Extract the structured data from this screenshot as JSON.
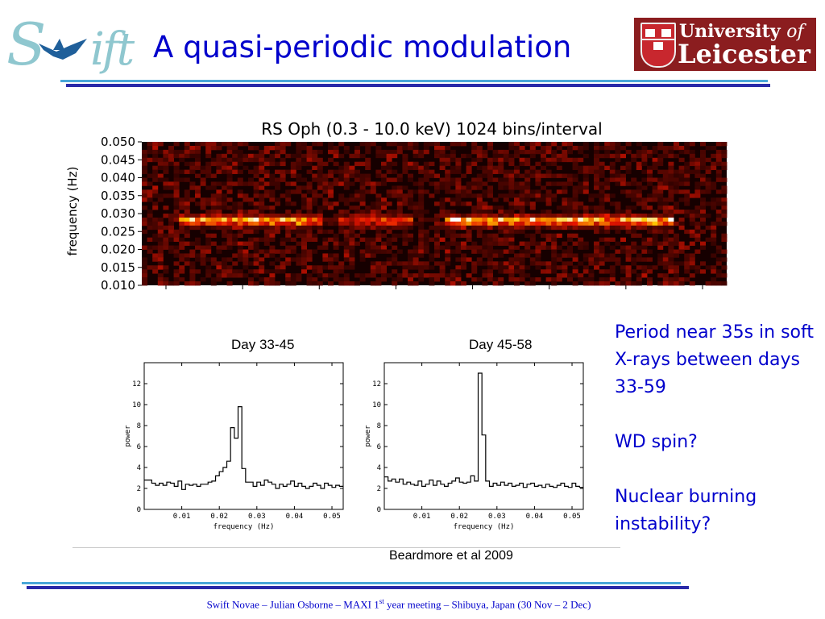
{
  "header": {
    "title": "A quasi-periodic modulation",
    "swift_logo_text": "Swift",
    "university_logo": {
      "line1": "University",
      "line1_of": "of",
      "line2": "Leicester"
    }
  },
  "colors": {
    "title": "#0000cc",
    "accent_light": "#4aa7d8",
    "accent_dark": "#2a2aa8",
    "swift_logo": "#8fc7cf",
    "leicester_red": "#8b1d1f"
  },
  "chart_data": [
    {
      "type": "heatmap",
      "title": "RS Oph (0.3 - 10.0 keV) 1024 bins/interval",
      "ylabel": "frequency (Hz)",
      "xlabel": "",
      "ylim": [
        0.01,
        0.05
      ],
      "yticks": [
        "0.050",
        "0.045",
        "0.040",
        "0.035",
        "0.030",
        "0.025",
        "0.020",
        "0.015",
        "0.010"
      ],
      "colormap": "black-red-yellow-white",
      "ridge_frequency_hz": 0.028,
      "ridge_segments": [
        {
          "start": 0.06,
          "end": 0.3,
          "intensity": 0.8
        },
        {
          "start": 0.33,
          "end": 0.46,
          "intensity": 0.5
        },
        {
          "start": 0.51,
          "end": 0.9,
          "intensity": 0.85
        }
      ]
    },
    {
      "type": "line",
      "title": "Day 33-45",
      "xlabel": "frequency (Hz)",
      "ylabel": "power",
      "xlim": [
        0.0,
        0.053
      ],
      "ylim": [
        0,
        14
      ],
      "xticks": [
        "0.01",
        "0.02",
        "0.03",
        "0.04",
        "0.05"
      ],
      "yticks": [
        "0",
        "2",
        "4",
        "6",
        "8",
        "10",
        "12"
      ],
      "step": true,
      "x": [
        0.0,
        0.001,
        0.002,
        0.003,
        0.004,
        0.005,
        0.006,
        0.007,
        0.008,
        0.009,
        0.01,
        0.011,
        0.012,
        0.013,
        0.014,
        0.015,
        0.016,
        0.017,
        0.018,
        0.019,
        0.02,
        0.021,
        0.022,
        0.023,
        0.024,
        0.025,
        0.026,
        0.027,
        0.028,
        0.029,
        0.03,
        0.031,
        0.032,
        0.033,
        0.034,
        0.035,
        0.036,
        0.037,
        0.038,
        0.039,
        0.04,
        0.041,
        0.042,
        0.043,
        0.044,
        0.045,
        0.046,
        0.047,
        0.048,
        0.049,
        0.05,
        0.051,
        0.052
      ],
      "values": [
        2.8,
        2.8,
        2.5,
        2.3,
        2.5,
        2.3,
        2.6,
        2.5,
        2.2,
        2.7,
        1.9,
        2.4,
        2.3,
        2.4,
        2.2,
        2.4,
        2.4,
        2.6,
        2.7,
        3.2,
        3.6,
        4.0,
        4.6,
        7.8,
        6.8,
        9.8,
        3.9,
        2.6,
        2.6,
        2.2,
        2.6,
        2.3,
        2.8,
        2.6,
        2.4,
        2.0,
        2.4,
        2.2,
        2.4,
        2.7,
        2.2,
        2.5,
        2.2,
        2.0,
        2.2,
        2.5,
        2.3,
        2.0,
        2.5,
        2.3,
        2.1,
        2.3,
        2.2
      ]
    },
    {
      "type": "line",
      "title": "Day 45-58",
      "xlabel": "frequency (Hz)",
      "ylabel": "power",
      "xlim": [
        0.0,
        0.053
      ],
      "ylim": [
        0,
        14
      ],
      "xticks": [
        "0.01",
        "0.02",
        "0.03",
        "0.04",
        "0.05"
      ],
      "yticks": [
        "0",
        "2",
        "4",
        "6",
        "8",
        "10",
        "12"
      ],
      "step": true,
      "x": [
        0.0,
        0.001,
        0.002,
        0.003,
        0.004,
        0.005,
        0.006,
        0.007,
        0.008,
        0.009,
        0.01,
        0.011,
        0.012,
        0.013,
        0.014,
        0.015,
        0.016,
        0.017,
        0.018,
        0.019,
        0.02,
        0.021,
        0.022,
        0.023,
        0.024,
        0.025,
        0.026,
        0.027,
        0.028,
        0.029,
        0.03,
        0.031,
        0.032,
        0.033,
        0.034,
        0.035,
        0.036,
        0.037,
        0.038,
        0.039,
        0.04,
        0.041,
        0.042,
        0.043,
        0.044,
        0.045,
        0.046,
        0.047,
        0.048,
        0.049,
        0.05,
        0.051,
        0.052
      ],
      "values": [
        3.1,
        2.7,
        2.9,
        2.6,
        2.9,
        2.4,
        2.6,
        2.4,
        2.3,
        2.7,
        2.2,
        2.4,
        2.8,
        2.3,
        2.7,
        2.4,
        2.2,
        2.5,
        2.7,
        3.0,
        2.6,
        2.5,
        2.6,
        3.2,
        2.7,
        13.0,
        7.1,
        2.7,
        2.2,
        2.5,
        2.3,
        2.6,
        2.3,
        2.5,
        2.2,
        2.3,
        2.5,
        2.1,
        2.4,
        2.5,
        2.2,
        2.3,
        2.1,
        2.4,
        2.2,
        2.1,
        2.3,
        2.5,
        2.2,
        2.1,
        2.5,
        2.2,
        2.1
      ]
    }
  ],
  "notes": [
    "Period near 35s in soft X-rays between days 33-59",
    "WD spin?",
    "Nuclear burning instability?"
  ],
  "citation": "Beardmore et al 2009",
  "footer": {
    "pre": "Swift Novae – Julian Osborne – MAXI 1",
    "sup": "st",
    "post": " year meeting – Shibuya, Japan (30 Nov – 2 Dec)"
  }
}
